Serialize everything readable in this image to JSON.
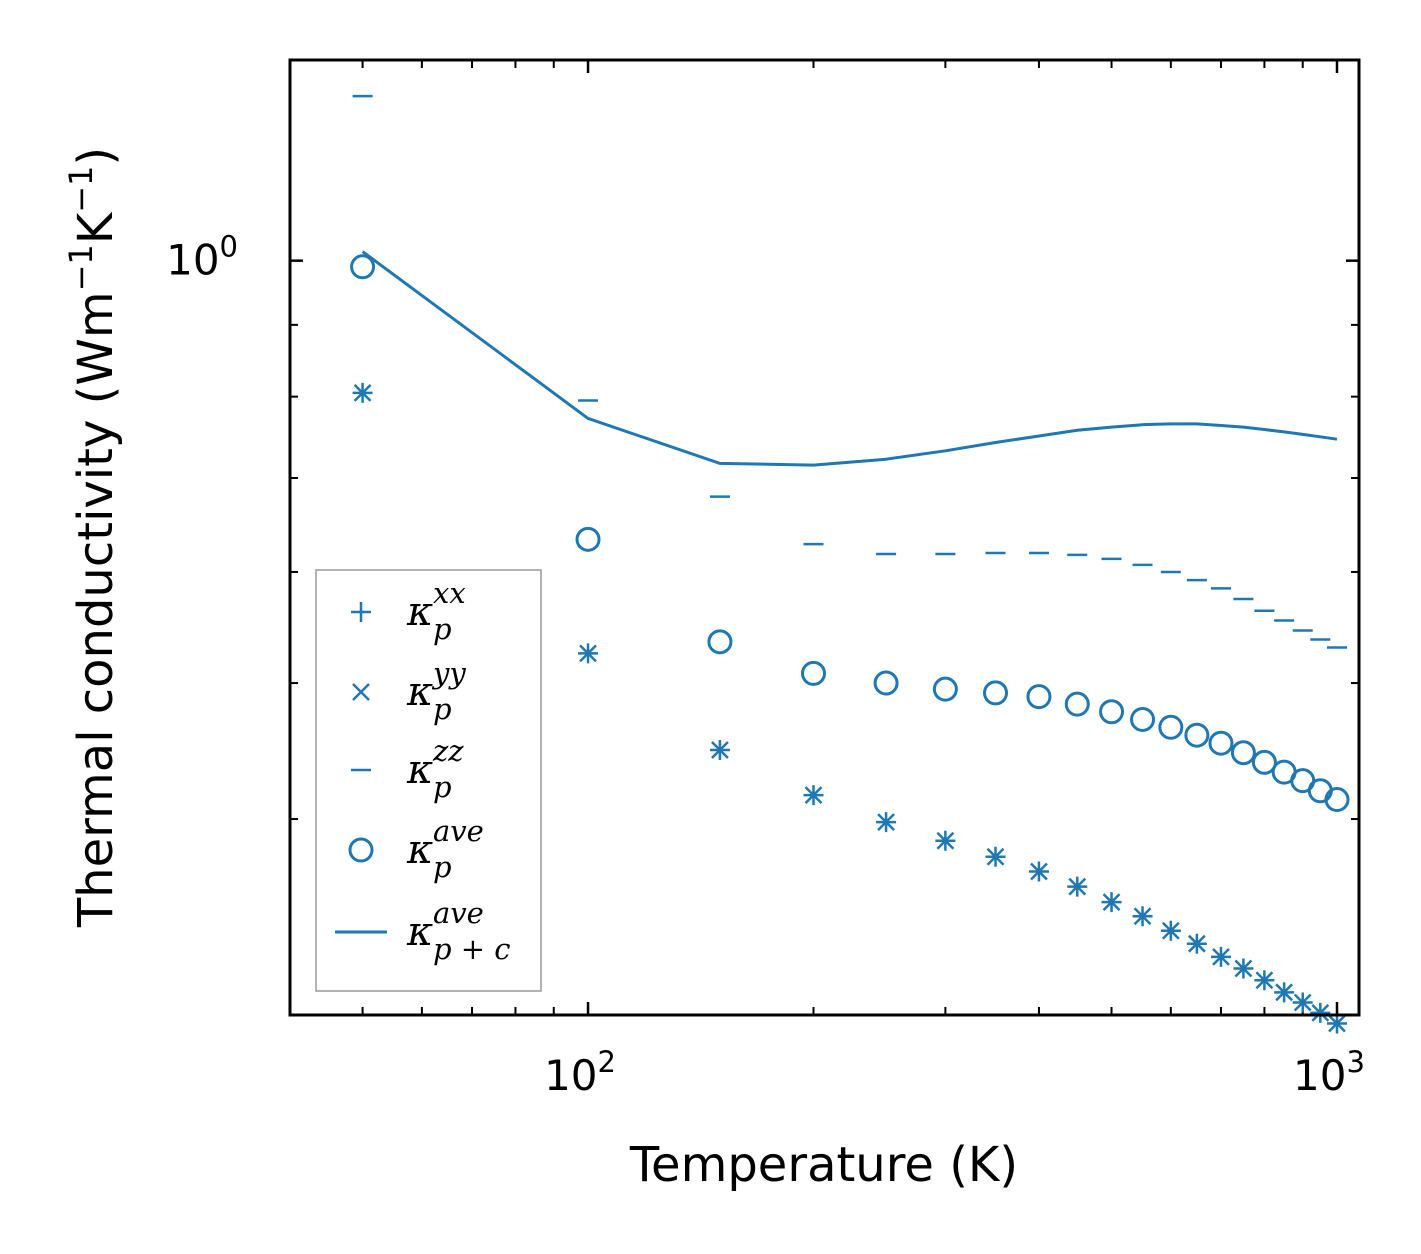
{
  "chart_data": {
    "type": "scatter",
    "xscale": "log",
    "yscale": "log",
    "xlim": [
      40,
      1070
    ],
    "ylim": [
      0.29,
      1.39
    ],
    "xlabel": "Temperature (K)",
    "ylabel": {
      "main": "Thermal conductivity (Wm",
      "exp1": "−1",
      "mid": "K",
      "exp2": "−1",
      "close": ")"
    },
    "x_major_ticks": [
      {
        "value": 100,
        "base": "10",
        "exp": "2"
      },
      {
        "value": 1000,
        "base": "10",
        "exp": "3"
      }
    ],
    "y_major_ticks": [
      {
        "value": 1.0,
        "base": "10",
        "exp": "0"
      }
    ],
    "x_minor_ticks": [
      50,
      60,
      70,
      80,
      90,
      200,
      300,
      400,
      500,
      600,
      700,
      800,
      900
    ],
    "y_minor_ticks": [
      0.4,
      0.5,
      0.6,
      0.7,
      0.8,
      0.9
    ],
    "x": [
      50,
      100,
      150,
      200,
      250,
      300,
      350,
      400,
      450,
      500,
      550,
      600,
      650,
      700,
      750,
      800,
      850,
      900,
      950,
      1000
    ],
    "series": [
      {
        "name": "kappa_p_xx",
        "marker": "plus",
        "values": [
          0.805,
          0.525,
          0.448,
          0.416,
          0.398,
          0.386,
          0.376,
          0.367,
          0.358,
          0.349,
          0.341,
          0.333,
          0.326,
          0.319,
          0.313,
          0.307,
          0.301,
          0.296,
          0.291,
          0.286
        ]
      },
      {
        "name": "kappa_p_yy",
        "marker": "x",
        "values": [
          0.805,
          0.525,
          0.448,
          0.416,
          0.398,
          0.386,
          0.376,
          0.367,
          0.358,
          0.349,
          0.341,
          0.333,
          0.326,
          0.319,
          0.313,
          0.307,
          0.301,
          0.296,
          0.291,
          0.286
        ]
      },
      {
        "name": "kappa_p_zz",
        "marker": "hline",
        "values": [
          1.31,
          0.795,
          0.679,
          0.628,
          0.618,
          0.618,
          0.619,
          0.619,
          0.617,
          0.613,
          0.607,
          0.6,
          0.592,
          0.584,
          0.574,
          0.563,
          0.554,
          0.545,
          0.537,
          0.53
        ]
      },
      {
        "name": "kappa_p_ave",
        "marker": "circle",
        "values": [
          0.99,
          0.633,
          0.535,
          0.508,
          0.5,
          0.495,
          0.492,
          0.489,
          0.483,
          0.477,
          0.471,
          0.465,
          0.459,
          0.453,
          0.446,
          0.439,
          0.432,
          0.426,
          0.419,
          0.413
        ]
      },
      {
        "name": "kappa_pc_ave",
        "marker": "line",
        "values": [
          1.015,
          0.772,
          0.717,
          0.715,
          0.722,
          0.732,
          0.742,
          0.75,
          0.757,
          0.761,
          0.764,
          0.765,
          0.765,
          0.763,
          0.761,
          0.758,
          0.755,
          0.752,
          0.749,
          0.746
        ]
      }
    ],
    "legend": {
      "position": "lower-left",
      "entries": [
        {
          "series": "kappa_p_xx",
          "symbol": "κ",
          "sub": "p",
          "sup": "xx"
        },
        {
          "series": "kappa_p_yy",
          "symbol": "κ",
          "sub": "p",
          "sup": "yy"
        },
        {
          "series": "kappa_p_zz",
          "symbol": "κ",
          "sub": "p",
          "sup": "zz"
        },
        {
          "series": "kappa_p_ave",
          "symbol": "κ",
          "sub": "p",
          "sup": "ave"
        },
        {
          "series": "kappa_pc_ave",
          "symbol": "κ",
          "sub": "p + c",
          "sup": "ave"
        }
      ]
    },
    "colors": {
      "series": "#1f77b4",
      "axes": "#000000",
      "legend_border": "#999999"
    }
  }
}
